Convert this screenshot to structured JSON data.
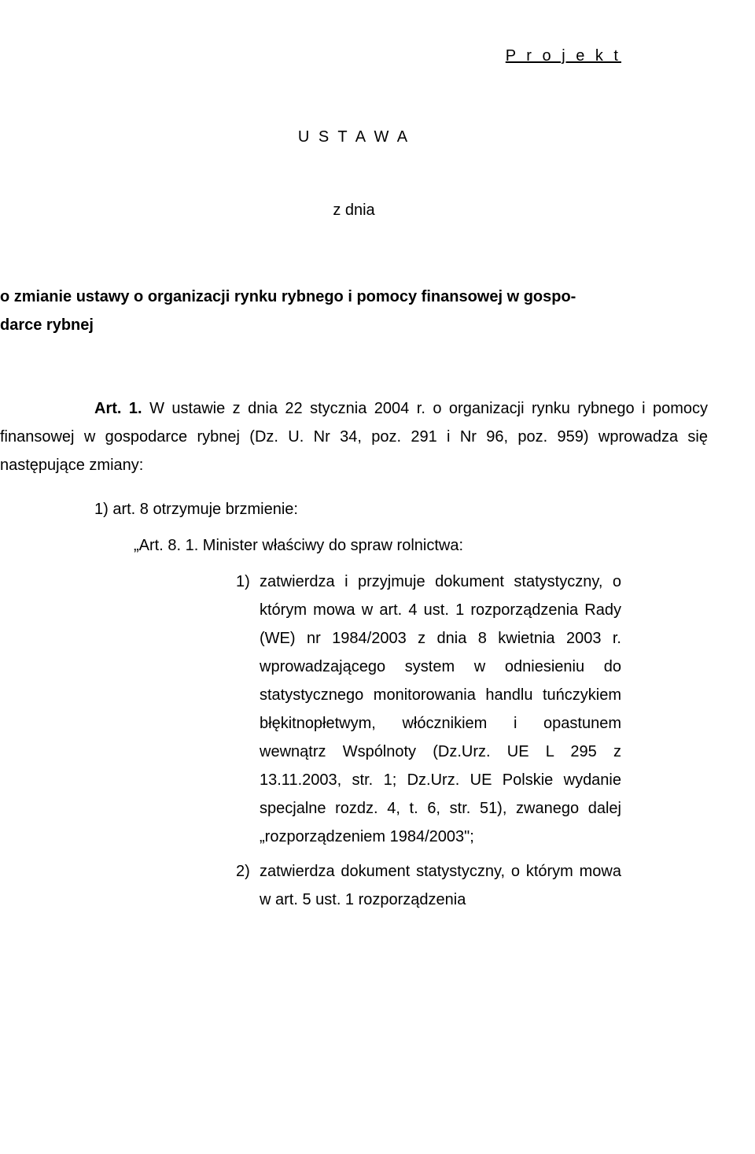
{
  "page": {
    "background_color": "#ffffff",
    "text_color": "#000000",
    "font_family": "Arial, Helvetica, sans-serif",
    "base_fontsize_pt": 15
  },
  "header_tag": "P r o j e k t",
  "title": "U S T A W A",
  "zdnia": "z dnia",
  "act_title_line1": "o zmianie ustawy o organizacji rynku rybnego i pomocy finansowej w gospo-",
  "act_title_line2": "darce rybnej",
  "art1_label": "Art. 1.",
  "art1_text": "W ustawie z dnia 22 stycznia 2004 r. o organizacji rynku rybnego i pomocy finansowej w gospodarce rybnej (Dz. U. Nr 34, poz. 291 i Nr 96, poz. 959) wprowadza się następujące zmiany:",
  "item1": "1) art. 8 otrzymuje brzmienie:",
  "item1_quote": "„Art. 8. 1. Minister właściwy do spraw rolnictwa:",
  "sub1_num": "1)",
  "sub1_text": "zatwierdza i przyjmuje dokument statystyczny, o którym mowa w art. 4 ust. 1 rozporządzenia Rady (WE) nr 1984/2003 z dnia 8 kwietnia 2003 r. wprowadzającego system w odniesieniu do statystycznego monitorowania handlu tuńczykiem błękitnopłetwym, włócznikiem i opastunem wewnątrz Wspólnoty (Dz.Urz. UE L 295 z 13.11.2003, str. 1; Dz.Urz. UE Polskie wydanie specjalne rozdz. 4, t. 6, str. 51), zwanego dalej „rozporządzeniem 1984/2003\";",
  "sub2_num": "2)",
  "sub2_text": "zatwierdza dokument statystyczny, o którym mowa w art. 5 ust. 1 rozporządzenia"
}
